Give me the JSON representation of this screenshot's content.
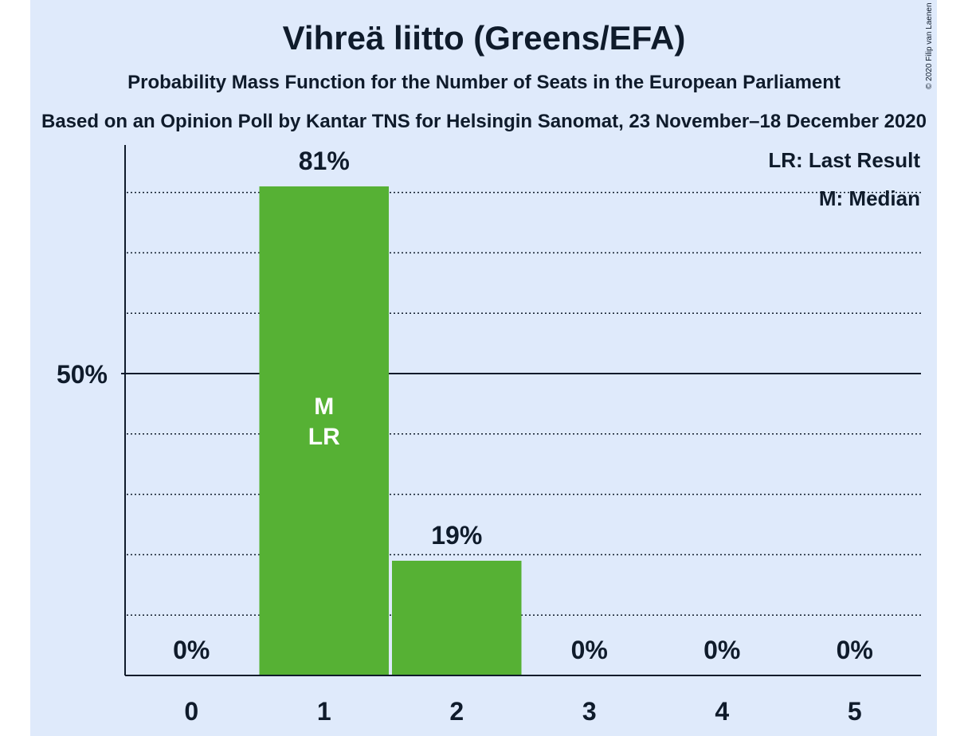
{
  "header": {
    "title": "Vihreä liitto (Greens/EFA)",
    "subtitle": "Probability Mass Function for the Number of Seats in the European Parliament",
    "subtitle2": "Based on an Opinion Poll by Kantar TNS for Helsingin Sanomat, 23 November–18 December 2020",
    "copyright": "© 2020 Filip van Laenen"
  },
  "legend": {
    "last_result": "LR: Last Result",
    "median": "M: Median"
  },
  "colors": {
    "background": "#dfeafb",
    "bar": "#56b134",
    "text": "#0f1b2b"
  },
  "chart_data": {
    "type": "bar",
    "categories": [
      "0",
      "1",
      "2",
      "3",
      "4",
      "5"
    ],
    "values": [
      0,
      81,
      19,
      0,
      0,
      0
    ],
    "value_labels": [
      "0%",
      "81%",
      "19%",
      "0%",
      "0%",
      "0%"
    ],
    "ylim": [
      0,
      88
    ],
    "y_tick_label": "50%",
    "y_tick_value": 50,
    "gridlines": [
      10,
      20,
      30,
      40,
      60,
      70,
      80
    ],
    "bar_annotations": [
      {
        "category": "1",
        "lines": [
          "M",
          "LR"
        ]
      }
    ],
    "legend_position": "top-right"
  }
}
